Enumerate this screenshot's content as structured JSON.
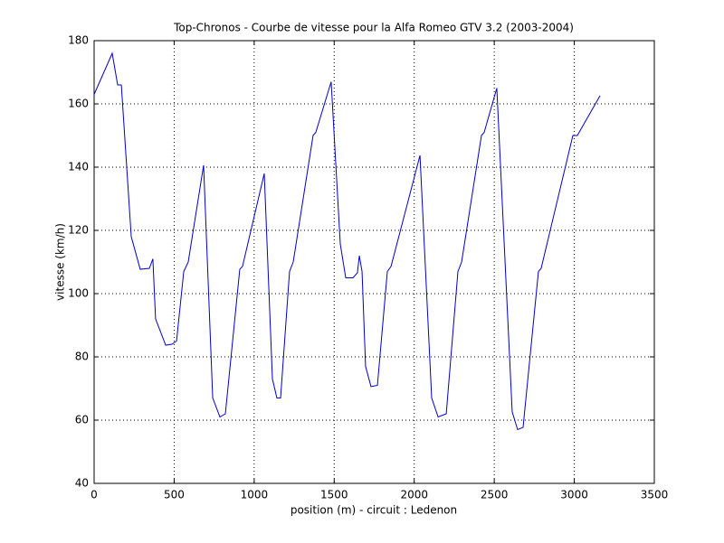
{
  "chart_data": {
    "type": "line",
    "title": "Top-Chronos - Courbe de vitesse pour la Alfa Romeo GTV 3.2 (2003-2004)",
    "xlabel": "position (m) - circuit : Ledenon",
    "ylabel": "vitesse (km/h)",
    "x": [
      0,
      113,
      147,
      170,
      232,
      288,
      345,
      367,
      384,
      447,
      486,
      515,
      560,
      588,
      684,
      741,
      786,
      820,
      910,
      927,
      1063,
      1114,
      1142,
      1165,
      1221,
      1244,
      1368,
      1385,
      1481,
      1538,
      1572,
      1617,
      1645,
      1657,
      1674,
      1696,
      1730,
      1770,
      1832,
      1855,
      2036,
      2109,
      2149,
      2200,
      2273,
      2296,
      2420,
      2437,
      2516,
      2612,
      2646,
      2680,
      2776,
      2793,
      2991,
      3019,
      3161
    ],
    "values": [
      163,
      176,
      166,
      166,
      118,
      107.7,
      108,
      111,
      92,
      83.7,
      84,
      85,
      107,
      110,
      140.6,
      67,
      61,
      62,
      107.7,
      108.6,
      138,
      73,
      67,
      67,
      107,
      110,
      150,
      151,
      167,
      115.7,
      105,
      105,
      106.6,
      112,
      107,
      77,
      70.6,
      71,
      107,
      108.6,
      143.7,
      67,
      61,
      62,
      107,
      110,
      150,
      151,
      165,
      62.6,
      57,
      57.7,
      107,
      108,
      150,
      150,
      162.6
    ],
    "color": "#0000cc",
    "xlim": [
      0,
      3500
    ],
    "ylim": [
      40,
      180
    ],
    "xticks": [
      0,
      500,
      1000,
      1500,
      2000,
      2500,
      3000,
      3500
    ],
    "yticks": [
      40,
      60,
      80,
      100,
      120,
      140,
      160,
      180
    ],
    "grid": true
  }
}
